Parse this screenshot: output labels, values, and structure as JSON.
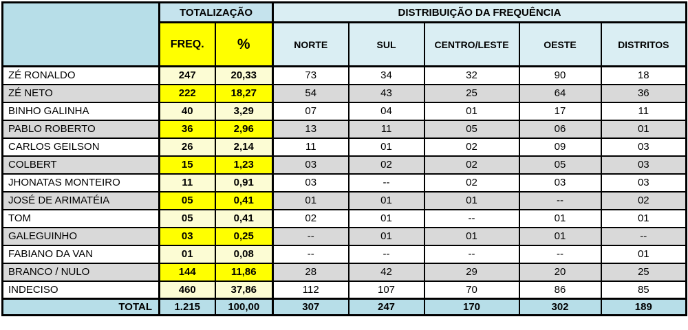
{
  "colors": {
    "corner_and_total_blue": "#B7DEE8",
    "totalizacao_blue": "#C5E3ED",
    "distribuicao_blue": "#DAEEF3",
    "bright_yellow": "#FFFF00",
    "pale_yellow": "#FCFCD4",
    "row_gray": "#D9D9D9",
    "row_white": "#FFFFFF",
    "border": "#000000"
  },
  "table": {
    "header": {
      "totalizacao": "TOTALIZAÇÃO",
      "distribuicao": "DISTRIBUIÇÃO DA FREQUÊNCIA",
      "freq": "FREQ.",
      "pct": "%",
      "regions": [
        "NORTE",
        "SUL",
        "CENTRO/LESTE",
        "OESTE",
        "DISTRITOS"
      ]
    },
    "rows": [
      {
        "name": "ZÉ RONALDO",
        "freq": "247",
        "pct": "20,33",
        "values": [
          "73",
          "34",
          "32",
          "90",
          "18"
        ]
      },
      {
        "name": "ZÉ NETO",
        "freq": "222",
        "pct": "18,27",
        "values": [
          "54",
          "43",
          "25",
          "64",
          "36"
        ]
      },
      {
        "name": "BINHO GALINHA",
        "freq": "40",
        "pct": "3,29",
        "values": [
          "07",
          "04",
          "01",
          "17",
          "11"
        ]
      },
      {
        "name": "PABLO ROBERTO",
        "freq": "36",
        "pct": "2,96",
        "values": [
          "13",
          "11",
          "05",
          "06",
          "01"
        ]
      },
      {
        "name": "CARLOS GEILSON",
        "freq": "26",
        "pct": "2,14",
        "values": [
          "11",
          "01",
          "02",
          "09",
          "03"
        ]
      },
      {
        "name": "COLBERT",
        "freq": "15",
        "pct": "1,23",
        "values": [
          "03",
          "02",
          "02",
          "05",
          "03"
        ]
      },
      {
        "name": "JHONATAS MONTEIRO",
        "freq": "11",
        "pct": "0,91",
        "values": [
          "03",
          "--",
          "02",
          "03",
          "03"
        ]
      },
      {
        "name": "JOSÉ DE ARIMATÉIA",
        "freq": "05",
        "pct": "0,41",
        "values": [
          "01",
          "01",
          "01",
          "--",
          "02"
        ]
      },
      {
        "name": "TOM",
        "freq": "05",
        "pct": "0,41",
        "values": [
          "02",
          "01",
          "--",
          "01",
          "01"
        ]
      },
      {
        "name": "GALEGUINHO",
        "freq": "03",
        "pct": "0,25",
        "values": [
          "--",
          "01",
          "01",
          "01",
          "--"
        ]
      },
      {
        "name": "FABIANO DA VAN",
        "freq": "01",
        "pct": "0,08",
        "values": [
          "--",
          "--",
          "--",
          "--",
          "01"
        ]
      },
      {
        "name": "BRANCO / NULO",
        "freq": "144",
        "pct": "11,86",
        "values": [
          "28",
          "42",
          "29",
          "20",
          "25"
        ]
      },
      {
        "name": "INDECISO",
        "freq": "460",
        "pct": "37,86",
        "values": [
          "112",
          "107",
          "70",
          "86",
          "85"
        ]
      }
    ],
    "total": {
      "label": "TOTAL",
      "freq": "1.215",
      "pct": "100,00",
      "values": [
        "307",
        "247",
        "170",
        "302",
        "189"
      ]
    }
  }
}
